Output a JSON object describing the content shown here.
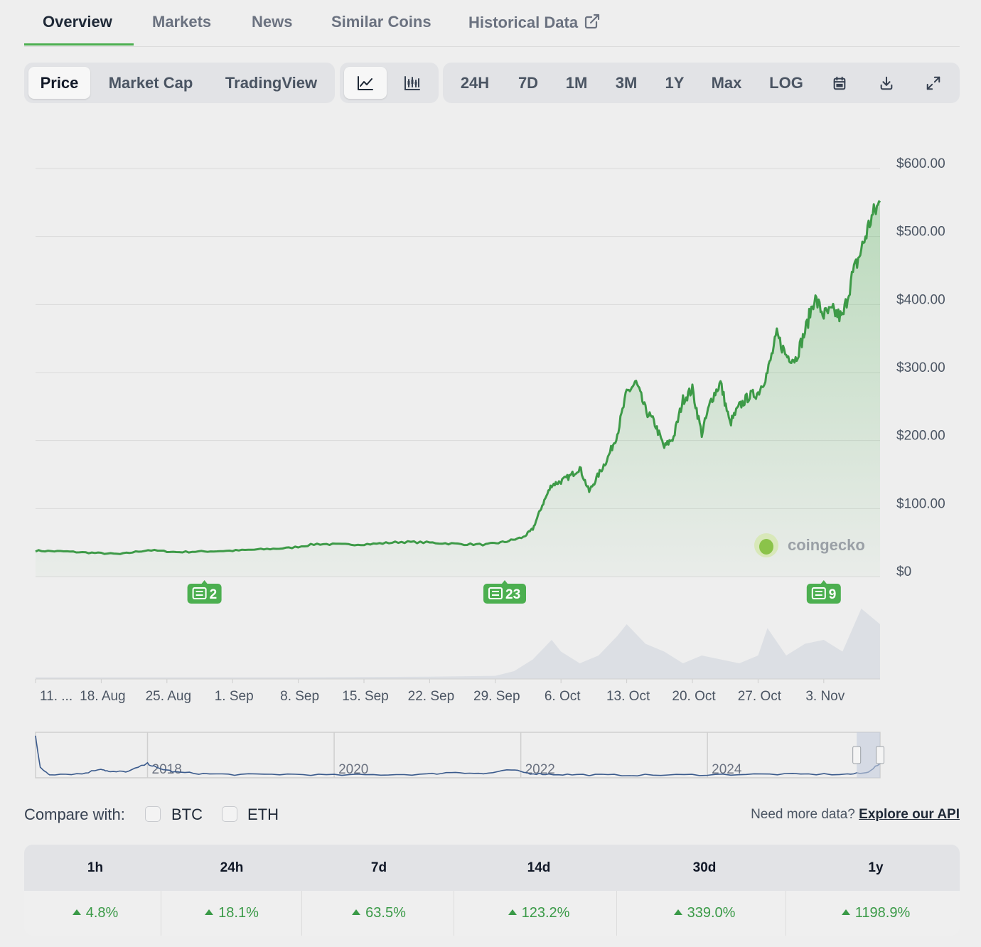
{
  "tabs": [
    {
      "label": "Overview",
      "active": true
    },
    {
      "label": "Markets"
    },
    {
      "label": "News"
    },
    {
      "label": "Similar Coins"
    },
    {
      "label": "Historical Data",
      "icon": "external-link-icon"
    }
  ],
  "toolbar": {
    "chart_types": [
      "Price",
      "Market Cap",
      "TradingView"
    ],
    "active_chart_type": "Price",
    "chart_styles": [
      {
        "icon": "line-chart-icon",
        "active": true
      },
      {
        "icon": "candlestick-chart-icon"
      }
    ],
    "ranges": [
      "24H",
      "7D",
      "1M",
      "3M",
      "1Y",
      "Max",
      "LOG"
    ],
    "actions": [
      "calendar-icon",
      "download-icon",
      "fullscreen-icon"
    ]
  },
  "chart_data": {
    "type": "area",
    "y_tick_labels": [
      "$600.00",
      "$500.00",
      "$400.00",
      "$300.00",
      "$200.00",
      "$100.00",
      "$0"
    ],
    "y_ticks": [
      600,
      500,
      400,
      300,
      200,
      100,
      0
    ],
    "ylim": [
      0,
      600
    ],
    "x_tick_labels": [
      "11. ...",
      "18. Aug",
      "25. Aug",
      "1. Sep",
      "8. Sep",
      "15. Sep",
      "22. Sep",
      "29. Sep",
      "6. Oct",
      "13. Oct",
      "20. Oct",
      "27. Oct",
      "3. Nov"
    ],
    "x_ticks": [
      "2024-08-11",
      "2024-08-18",
      "2024-08-25",
      "2024-09-01",
      "2024-09-08",
      "2024-09-15",
      "2024-09-22",
      "2024-09-29",
      "2024-10-06",
      "2024-10-13",
      "2024-10-20",
      "2024-10-27",
      "2024-11-03"
    ],
    "xlim": [
      "2024-08-11",
      "2024-11-09"
    ],
    "line_color": "#3d9a47",
    "fill_color": "#4caf50",
    "grid": true,
    "watermark": "coingecko",
    "price_series": {
      "x": [
        "2024-08-11",
        "2024-08-14",
        "2024-08-17",
        "2024-08-20",
        "2024-08-23",
        "2024-08-26",
        "2024-08-29",
        "2024-09-01",
        "2024-09-04",
        "2024-09-07",
        "2024-09-10",
        "2024-09-13",
        "2024-09-16",
        "2024-09-19",
        "2024-09-22",
        "2024-09-25",
        "2024-09-28",
        "2024-09-30",
        "2024-10-02",
        "2024-10-03",
        "2024-10-04",
        "2024-10-05",
        "2024-10-06",
        "2024-10-07",
        "2024-10-08",
        "2024-10-09",
        "2024-10-10",
        "2024-10-11",
        "2024-10-12",
        "2024-10-13",
        "2024-10-14",
        "2024-10-15",
        "2024-10-16",
        "2024-10-17",
        "2024-10-18",
        "2024-10-19",
        "2024-10-20",
        "2024-10-21",
        "2024-10-22",
        "2024-10-23",
        "2024-10-24",
        "2024-10-25",
        "2024-10-26",
        "2024-10-27",
        "2024-10-28",
        "2024-10-29",
        "2024-10-30",
        "2024-10-31",
        "2024-11-01",
        "2024-11-02",
        "2024-11-03",
        "2024-11-04",
        "2024-11-05",
        "2024-11-06",
        "2024-11-07",
        "2024-11-08",
        "2024-11-09"
      ],
      "y": [
        38,
        37,
        35,
        33,
        39,
        36,
        37,
        38,
        40,
        42,
        48,
        47,
        48,
        51,
        50,
        48,
        47,
        51,
        58,
        70,
        105,
        135,
        140,
        148,
        160,
        125,
        150,
        175,
        210,
        270,
        285,
        245,
        225,
        190,
        205,
        260,
        275,
        210,
        260,
        285,
        225,
        250,
        265,
        270,
        300,
        355,
        325,
        320,
        360,
        410,
        385,
        390,
        380,
        440,
        480,
        525,
        550
      ]
    },
    "volume_series": {
      "x": [
        "2024-08-11",
        "2024-08-25",
        "2024-09-08",
        "2024-09-22",
        "2024-09-29",
        "2024-10-01",
        "2024-10-03",
        "2024-10-05",
        "2024-10-06",
        "2024-10-08",
        "2024-10-10",
        "2024-10-12",
        "2024-10-13",
        "2024-10-15",
        "2024-10-17",
        "2024-10-19",
        "2024-10-21",
        "2024-10-23",
        "2024-10-25",
        "2024-10-27",
        "2024-10-28",
        "2024-10-30",
        "2024-11-01",
        "2024-11-03",
        "2024-11-05",
        "2024-11-07",
        "2024-11-09"
      ],
      "y": [
        0.02,
        0.02,
        0.02,
        0.03,
        0.04,
        0.1,
        0.25,
        0.5,
        0.35,
        0.2,
        0.3,
        0.55,
        0.7,
        0.45,
        0.35,
        0.2,
        0.3,
        0.25,
        0.2,
        0.3,
        0.65,
        0.3,
        0.45,
        0.5,
        0.35,
        0.9,
        0.7
      ]
    },
    "news_markers": [
      {
        "date": "2024-08-29",
        "count": "2"
      },
      {
        "date": "2024-09-30",
        "count": "23"
      },
      {
        "date": "2024-11-03",
        "count": "9"
      }
    ],
    "navigator": {
      "year_labels": [
        "2018",
        "2020",
        "2022",
        "2024"
      ],
      "year_x": [
        2018,
        2020,
        2022,
        2024
      ],
      "xlim": [
        2016.8,
        2025.85
      ],
      "x": [
        2016.8,
        2016.85,
        2016.95,
        2017.3,
        2017.5,
        2017.6,
        2017.8,
        2018.0,
        2018.1,
        2018.3,
        2018.6,
        2019.0,
        2019.5,
        2020.0,
        2020.5,
        2021.0,
        2021.3,
        2021.6,
        2021.9,
        2022.1,
        2022.3,
        2022.6,
        2023.0,
        2023.5,
        2024.0,
        2024.5,
        2025.0,
        2025.5,
        2025.7,
        2025.85
      ],
      "y": [
        0.95,
        0.2,
        0.05,
        0.06,
        0.18,
        0.1,
        0.12,
        0.3,
        0.2,
        0.1,
        0.06,
        0.04,
        0.05,
        0.03,
        0.04,
        0.05,
        0.1,
        0.06,
        0.15,
        0.07,
        0.05,
        0.04,
        0.03,
        0.03,
        0.04,
        0.05,
        0.05,
        0.05,
        0.08,
        0.3
      ],
      "selection": [
        2025.6,
        2025.85
      ]
    }
  },
  "compare": {
    "label": "Compare with:",
    "options": [
      {
        "label": "BTC",
        "checked": false
      },
      {
        "label": "ETH",
        "checked": false
      }
    ]
  },
  "api_link": {
    "text": "Need more data?",
    "link": "Explore our API"
  },
  "performance": {
    "headers": [
      "1h",
      "24h",
      "7d",
      "14d",
      "30d",
      "1y"
    ],
    "values": [
      "4.8%",
      "18.1%",
      "63.5%",
      "123.2%",
      "339.0%",
      "1198.9%"
    ]
  }
}
